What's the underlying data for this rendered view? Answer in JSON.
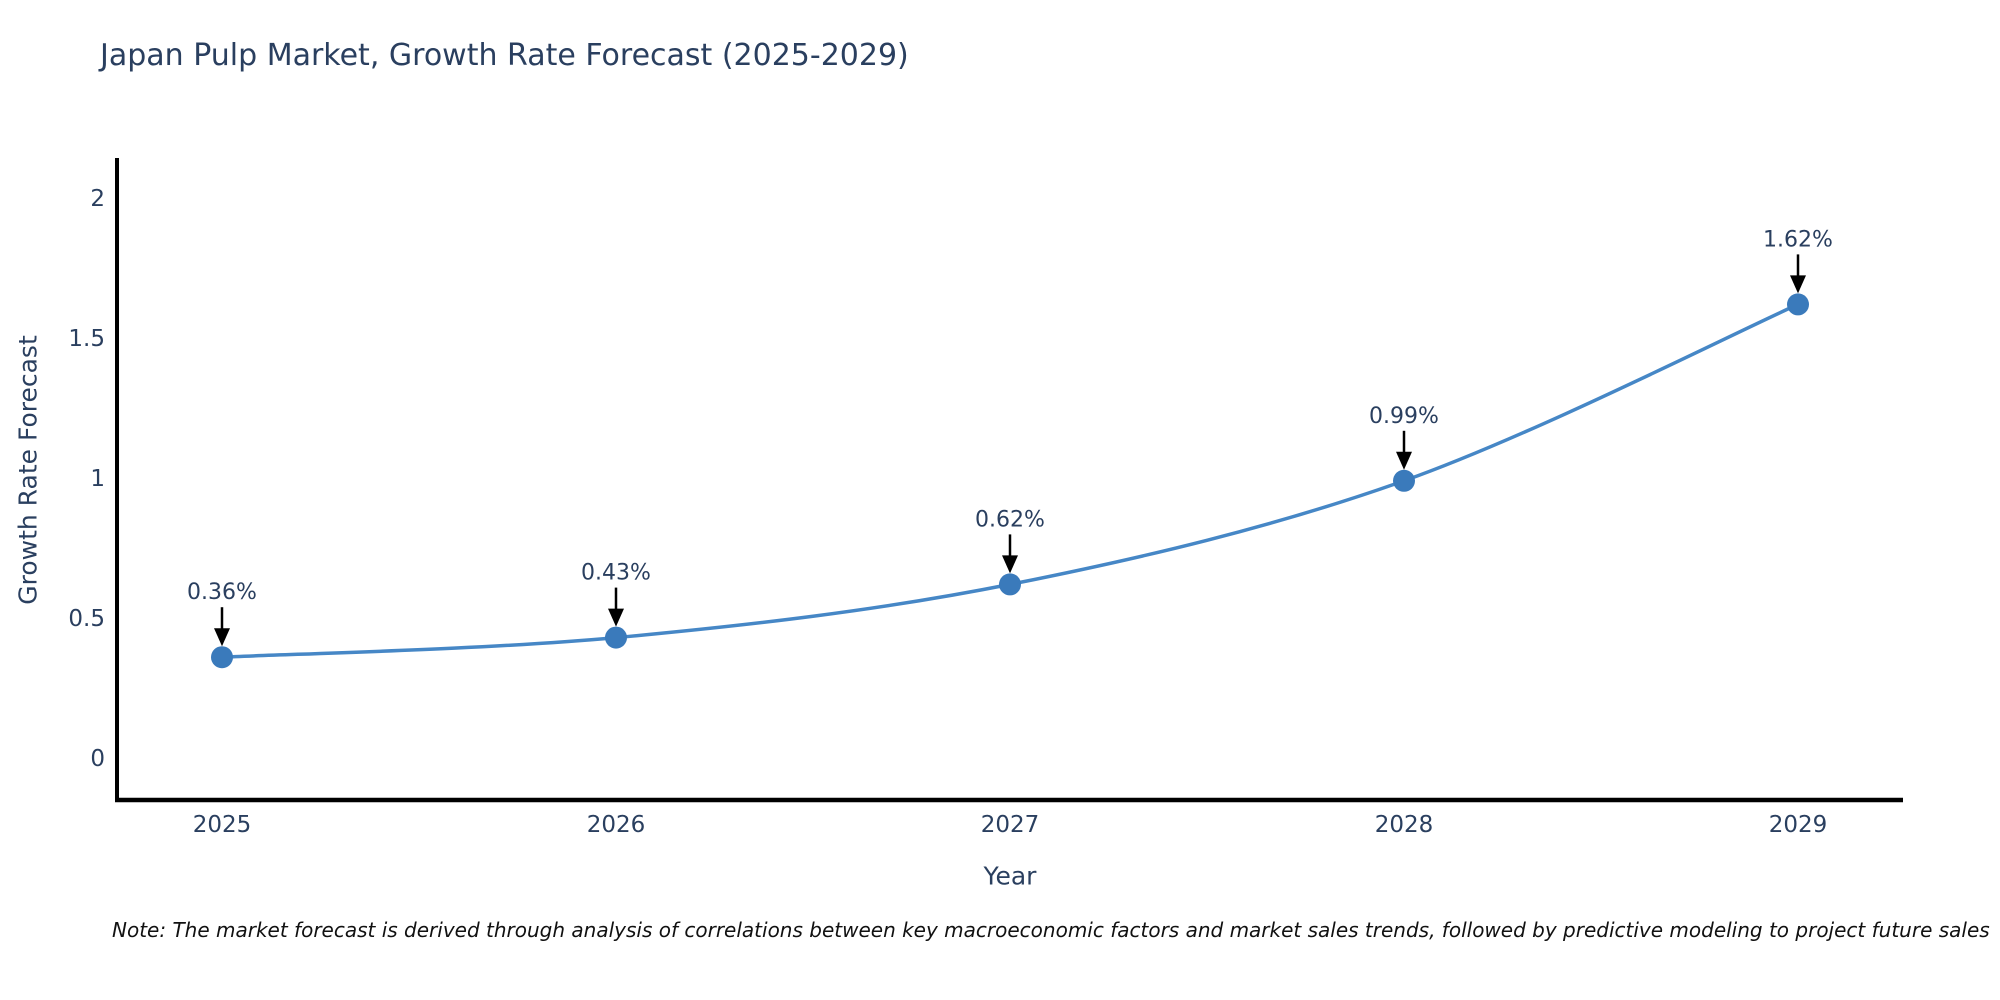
{
  "chart_data": {
    "type": "line",
    "title": "Japan Pulp Market, Growth Rate Forecast (2025-2029)",
    "xlabel": "Year",
    "ylabel": "Growth Rate Forecast",
    "categories": [
      "2025",
      "2026",
      "2027",
      "2028",
      "2029"
    ],
    "series": [
      {
        "name": "Growth Rate Forecast",
        "values": [
          0.36,
          0.43,
          0.62,
          0.99,
          1.62
        ],
        "point_labels": [
          "0.36%",
          "0.43%",
          "0.62%",
          "0.99%",
          "1.62%"
        ]
      }
    ],
    "line_shape": "spline",
    "grid": false,
    "legend_position": "none",
    "yticks": [
      0,
      0.5,
      1,
      1.5,
      2
    ],
    "ytick_labels": [
      "0",
      "0.5",
      "1",
      "1.5",
      "2"
    ],
    "ylim": [
      -0.15,
      2.14
    ],
    "colors": {
      "line": "#4687c6",
      "marker": "#3a7abb",
      "axis": "#000000",
      "text": "#2a3f5f",
      "annotation_text": "#2a3f5f",
      "annotation_arrow": "#000000",
      "background": "#ffffff"
    },
    "note": "Note: The market forecast is derived through analysis of correlations between key macroeconomic factors and market sales trends, followed by predictive modeling to project future sales"
  }
}
